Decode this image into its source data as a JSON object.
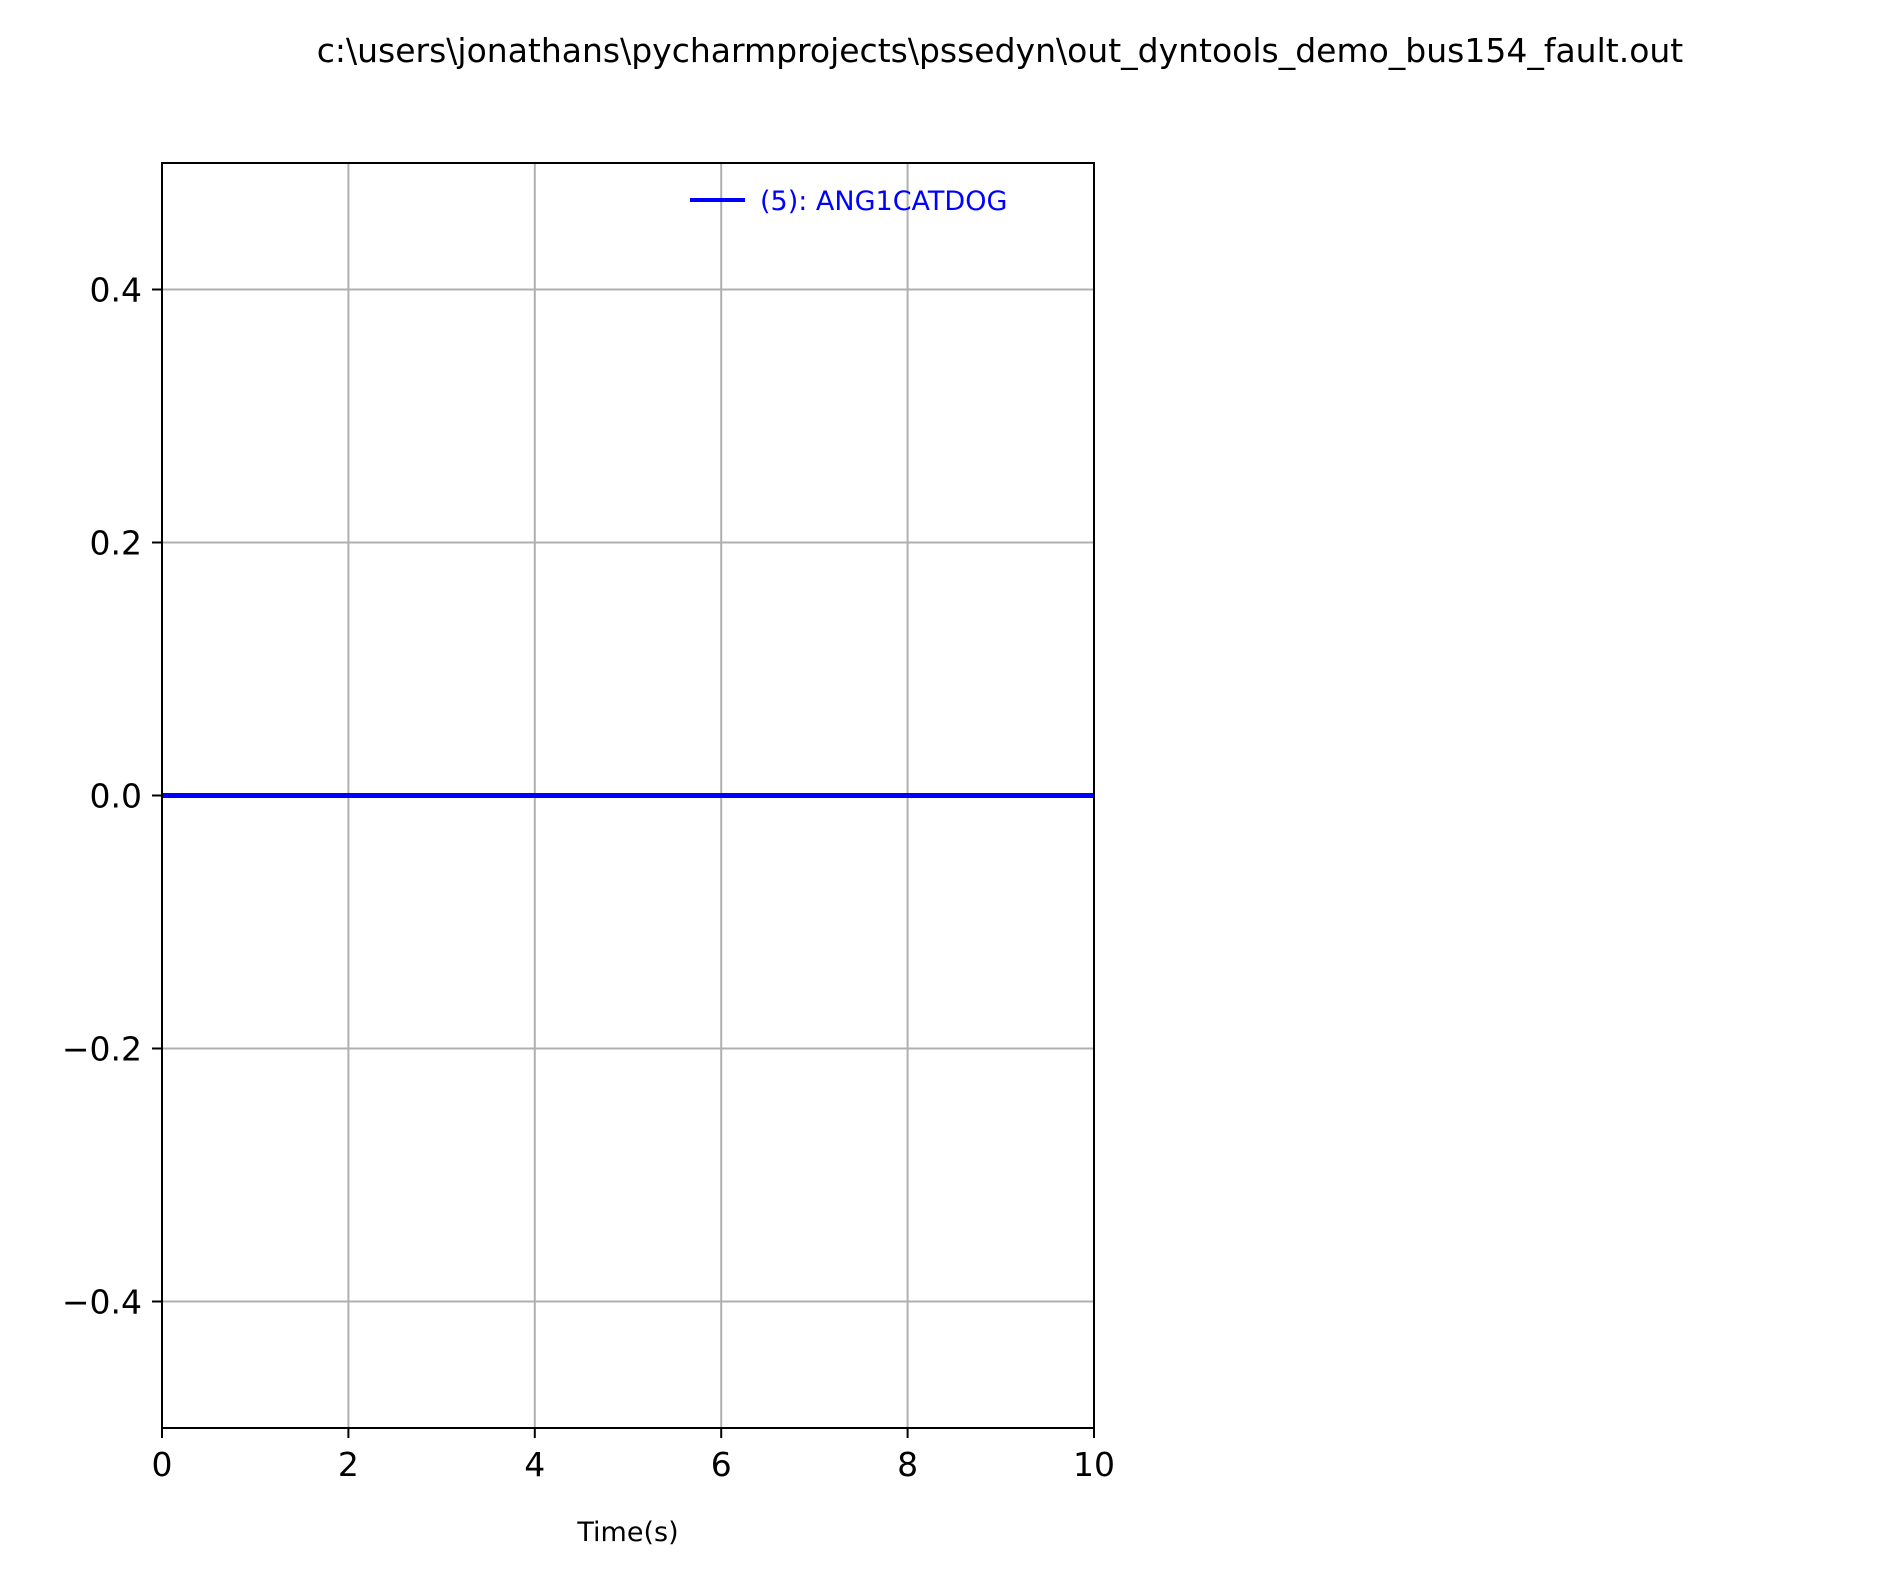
{
  "chart_data": {
    "type": "line",
    "title": "c:\\users\\jonathans\\pycharmprojects\\pssedyn\\out_dyntools_demo_bus154_fault.out",
    "xlabel": "Time(s)",
    "ylabel": "",
    "xlim": [
      0,
      10
    ],
    "ylim": [
      -0.5,
      0.5
    ],
    "xticks": [
      0,
      2,
      4,
      6,
      8,
      10
    ],
    "xtick_labels": [
      "0",
      "2",
      "4",
      "6",
      "8",
      "10"
    ],
    "yticks": [
      0.4,
      0.2,
      0.0,
      -0.2,
      -0.4
    ],
    "ytick_labels": [
      "0.4",
      "0.2",
      "0.0",
      "−0.2",
      "−0.4"
    ],
    "grid": true,
    "legend_position": "top-right",
    "series": [
      {
        "name": "(5): ANG1CATDOG",
        "color": "#0000ff",
        "x": [
          0,
          10
        ],
        "y": [
          0,
          0
        ]
      }
    ]
  }
}
